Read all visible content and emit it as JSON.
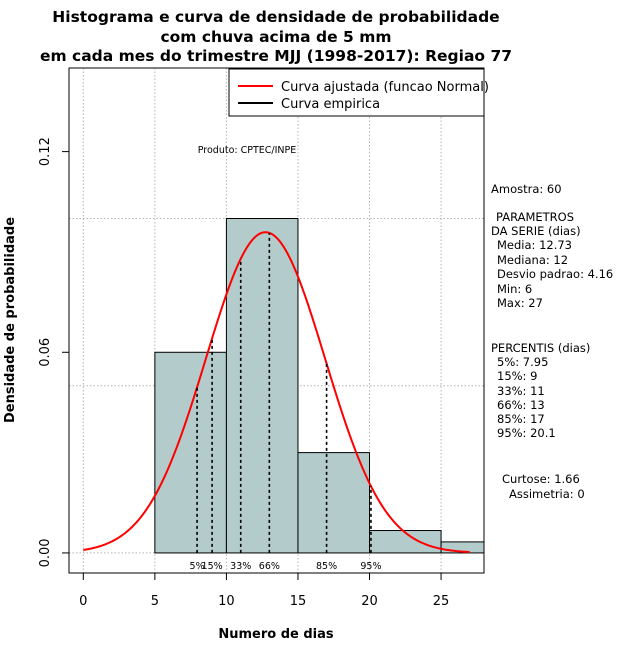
{
  "chart_data": {
    "type": "histogram",
    "title_lines": [
      "Histograma e curva de densidade de probabilidade",
      "com chuva acima de 5 mm",
      "em cada mes do trimestre MJJ (1998-2017): Regiao 77"
    ],
    "xlabel": "Numero de dias",
    "ylabel": "Densidade de probabilidade",
    "xlim": [
      -1,
      28
    ],
    "ylim": [
      -0.006,
      0.145
    ],
    "x_ticks": [
      0,
      5,
      10,
      15,
      20,
      25
    ],
    "y_ticks": [
      0.0,
      0.06,
      0.12
    ],
    "y_tick_labels": [
      "0.00",
      "0.06",
      "0.12"
    ],
    "grid_x": [
      0,
      5,
      10,
      15,
      20,
      25
    ],
    "grid_y": [
      0.0,
      0.05,
      0.1
    ],
    "bars": [
      {
        "x0": 5,
        "x1": 10,
        "density": 0.06
      },
      {
        "x0": 10,
        "x1": 15,
        "density": 0.1
      },
      {
        "x0": 15,
        "x1": 20,
        "density": 0.03
      },
      {
        "x0": 20,
        "x1": 25,
        "density": 0.0067
      },
      {
        "x0": 25,
        "x1": 30,
        "density": 0.0033
      }
    ],
    "bar_color": "#b3cbcb",
    "normal_fit": {
      "mean": 12.73,
      "sd": 4.16,
      "x_start": 0,
      "x_end": 27,
      "color": "#ff0000"
    },
    "percentile_lines": [
      {
        "label": "5%",
        "x": 7.95
      },
      {
        "label": "15%",
        "x": 9
      },
      {
        "label": "33%",
        "x": 11
      },
      {
        "label": "66%",
        "x": 13
      },
      {
        "label": "85%",
        "x": 17
      },
      {
        "label": "95%",
        "x": 20.1
      }
    ],
    "legend": [
      {
        "label": "Curva ajustada (funcao Normal)",
        "color": "#ff0000"
      },
      {
        "label": "Curva empirica",
        "color": "#000000"
      }
    ],
    "product_note": "Produto: CPTEC/INPE",
    "side_panel": [
      "Amostra: 60",
      "PARAMETROS",
      "DA SERIE (dias)",
      "Media: 12.73",
      "Mediana: 12",
      "Desvio padrao: 4.16",
      "Min: 6",
      "Max: 27",
      "PERCENTIS (dias)",
      "5%: 7.95",
      "15%: 9",
      "33%: 11",
      "66%: 13",
      "85%: 17",
      "95%: 20.1",
      "Curtose: 1.66",
      "Assimetria: 0"
    ]
  }
}
